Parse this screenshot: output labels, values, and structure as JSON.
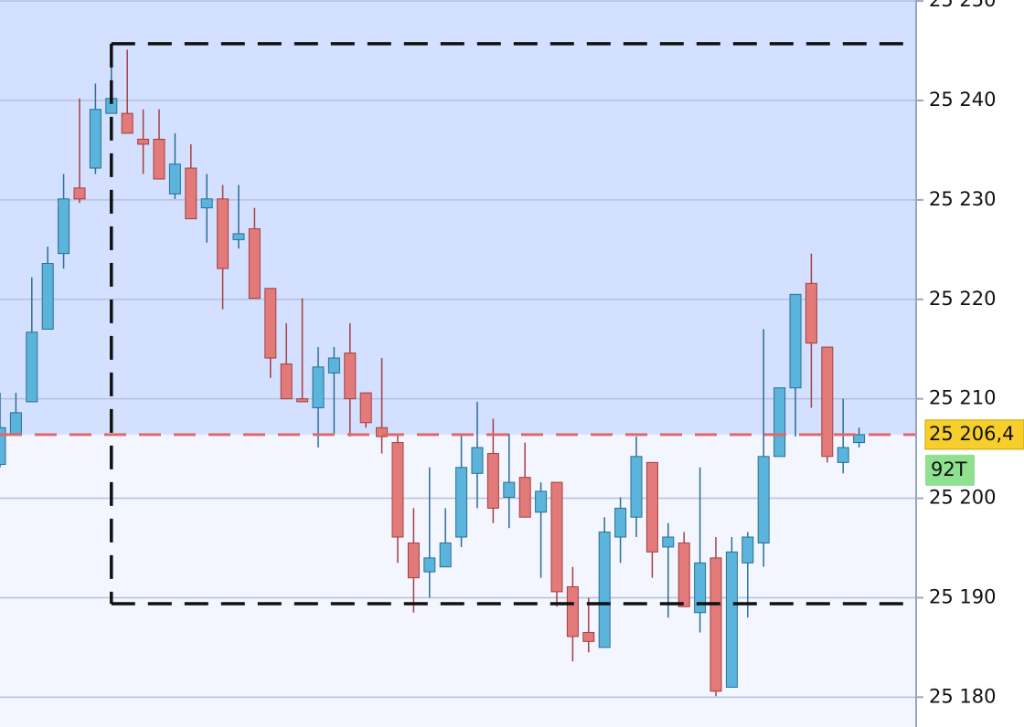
{
  "chart_data": {
    "type": "candlestick",
    "up_color": "#5ab4dc",
    "down_color": "#e27a7a",
    "open": [
      25203.4,
      25206.5,
      25209.7,
      25217.0,
      25224.6,
      25231.2,
      25233.2,
      25238.7,
      25238.7,
      25236.1,
      25236.1,
      25230.6,
      25233.2,
      25229.2,
      25230.1,
      25226.0,
      25227.1,
      25221.1,
      25213.5,
      25210.0,
      25209.1,
      25212.6,
      25214.6,
      25210.6,
      25207.1,
      25205.6,
      25195.5,
      25192.6,
      25193.1,
      25196.1,
      25202.5,
      25204.5,
      25200.1,
      25202.1,
      25198.6,
      25201.6,
      25191.1,
      25186.5,
      25185.0,
      25196.1,
      25198.1,
      25203.6,
      25195.1,
      25195.5,
      25188.5,
      25194.0,
      25181.0,
      25193.5,
      25195.5,
      25204.2,
      25211.1,
      25221.6,
      25215.2,
      25203.6,
      25205.6
    ],
    "high": [
      25210.6,
      25210.6,
      25222.2,
      25225.3,
      25232.6,
      25240.2,
      25241.7,
      25243.5,
      25245.1,
      25239.1,
      25239.1,
      25236.7,
      25235.6,
      25232.6,
      25231.5,
      25231.5,
      25229.2,
      25221.1,
      25217.6,
      25220.1,
      25215.2,
      25215.2,
      25217.6,
      25210.6,
      25214.1,
      25206.5,
      25199.0,
      25203.1,
      25199.0,
      25206.5,
      25209.7,
      25208.0,
      25206.5,
      25205.6,
      25201.6,
      25201.6,
      25193.1,
      25190.0,
      25198.1,
      25200.1,
      25206.2,
      25203.6,
      25197.5,
      25196.6,
      25203.1,
      25196.1,
      25196.1,
      25196.6,
      25217.0,
      25211.1,
      25220.5,
      25224.6,
      25215.2,
      25210.0,
      25207.1
    ],
    "low": [
      25203.1,
      25206.5,
      25209.7,
      25217.0,
      25223.1,
      25229.7,
      25232.6,
      25238.7,
      25236.7,
      25232.6,
      25232.1,
      25230.1,
      25228.1,
      25225.7,
      25219.0,
      25225.1,
      25220.1,
      25212.1,
      25210.0,
      25209.7,
      25205.1,
      25206.5,
      25206.2,
      25207.1,
      25204.5,
      25193.5,
      25188.5,
      25190.0,
      25193.1,
      25195.1,
      25199.0,
      25197.5,
      25197.0,
      25198.1,
      25192.0,
      25189.1,
      25183.6,
      25184.5,
      25185.0,
      25193.5,
      25196.1,
      25192.0,
      25188.0,
      25189.1,
      25186.5,
      25180.1,
      25181.0,
      25188.0,
      25193.1,
      25204.2,
      25206.2,
      25209.1,
      25203.6,
      25202.5,
      25205.1
    ],
    "close": [
      25207.1,
      25208.6,
      25216.7,
      25223.6,
      25230.1,
      25230.1,
      25239.1,
      25240.2,
      25236.7,
      25235.6,
      25232.1,
      25233.6,
      25228.1,
      25230.1,
      25223.1,
      25226.6,
      25220.1,
      25214.1,
      25210.0,
      25209.7,
      25213.2,
      25214.1,
      25210.0,
      25207.6,
      25206.2,
      25196.1,
      25192.0,
      25194.0,
      25195.5,
      25203.1,
      25205.1,
      25199.0,
      25201.6,
      25198.1,
      25200.7,
      25190.6,
      25186.1,
      25185.6,
      25196.6,
      25199.0,
      25204.2,
      25194.6,
      25196.1,
      25189.1,
      25193.5,
      25180.6,
      25194.6,
      25196.1,
      25204.2,
      25211.1,
      25220.5,
      25215.6,
      25204.2,
      25205.1,
      25206.4
    ],
    "ylim": [
      25177,
      25250.1
    ],
    "yticks": [
      {
        "value": 25180,
        "label": "25 180"
      },
      {
        "value": 25190,
        "label": "25 190"
      },
      {
        "value": 25200,
        "label": "25 200"
      },
      {
        "value": 25210,
        "label": "25 210"
      },
      {
        "value": 25220,
        "label": "25 220"
      },
      {
        "value": 25230,
        "label": "25 230"
      },
      {
        "value": 25240,
        "label": "25 240"
      },
      {
        "value": 25250,
        "label": "25 250"
      }
    ],
    "grid": true,
    "price": {
      "value": 25206.4,
      "label": "25 206,4"
    },
    "badge": "92T",
    "rectangle": {
      "start": 7,
      "top": 25245.7,
      "bottom": 25189.4
    }
  }
}
